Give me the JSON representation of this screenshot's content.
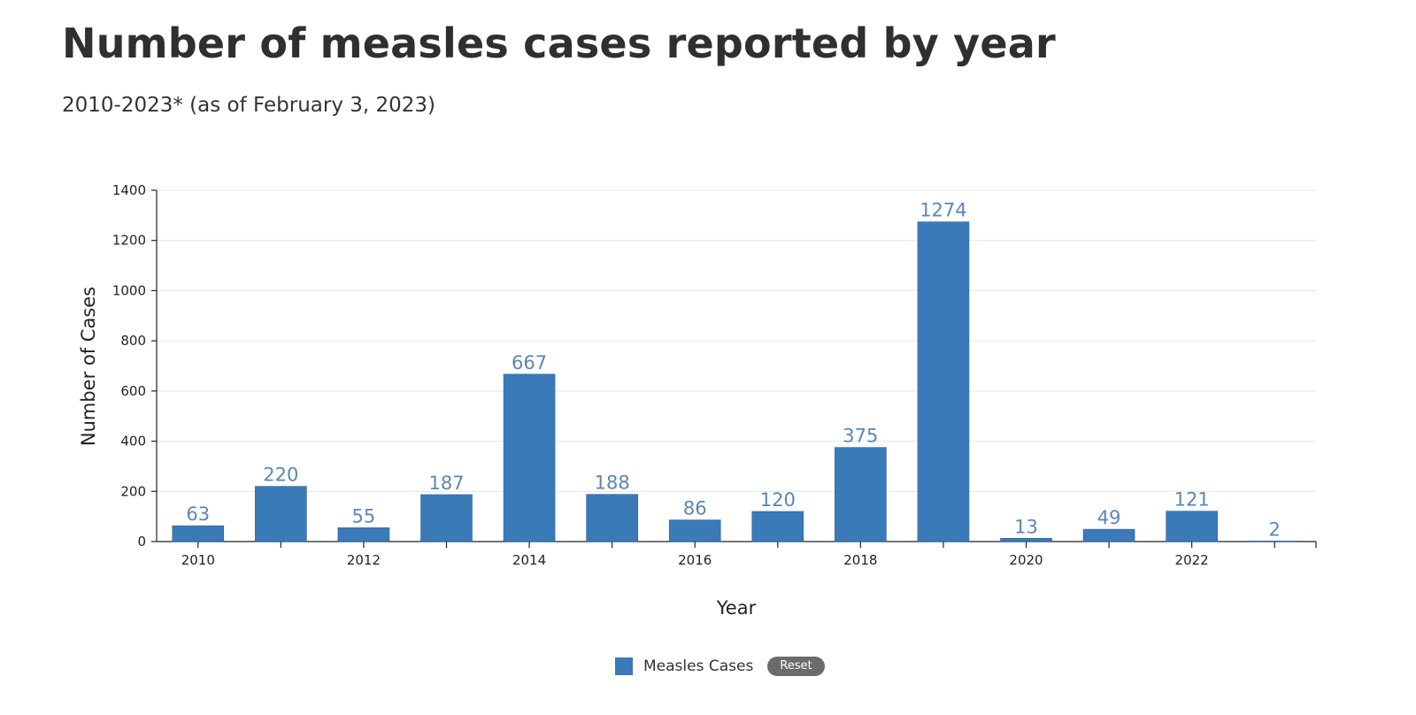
{
  "header": {
    "title": "Number of measles cases reported by year",
    "subtitle": "2010-2023* (as of February 3, 2023)"
  },
  "legend": {
    "series_label": "Measles Cases",
    "reset_label": "Reset"
  },
  "colors": {
    "bar": "#3a7ab8",
    "bar_stroke": "#2b6198",
    "data_label": "#5b86b6",
    "grid": "#e4e4e4",
    "axis": "#222222"
  },
  "chart_data": {
    "type": "bar",
    "categories": [
      "2010",
      "2011",
      "2012",
      "2013",
      "2014",
      "2015",
      "2016",
      "2017",
      "2018",
      "2019",
      "2020",
      "2021",
      "2022",
      "2023"
    ],
    "values": [
      63,
      220,
      55,
      187,
      667,
      188,
      86,
      120,
      375,
      1274,
      13,
      49,
      121,
      2
    ],
    "series": [
      {
        "name": "Measles Cases",
        "values": [
          63,
          220,
          55,
          187,
          667,
          188,
          86,
          120,
          375,
          1274,
          13,
          49,
          121,
          2
        ]
      }
    ],
    "x_tick_labels": [
      "2010",
      "2012",
      "2014",
      "2016",
      "2018",
      "2020",
      "2022"
    ],
    "y_ticks": [
      0,
      200,
      400,
      600,
      800,
      1000,
      1200,
      1400
    ],
    "xlabel": "Year",
    "ylabel": "Number of Cases",
    "ylim": [
      0,
      1400
    ],
    "grid": true,
    "legend_position": "bottom-center",
    "data_labels": true
  }
}
